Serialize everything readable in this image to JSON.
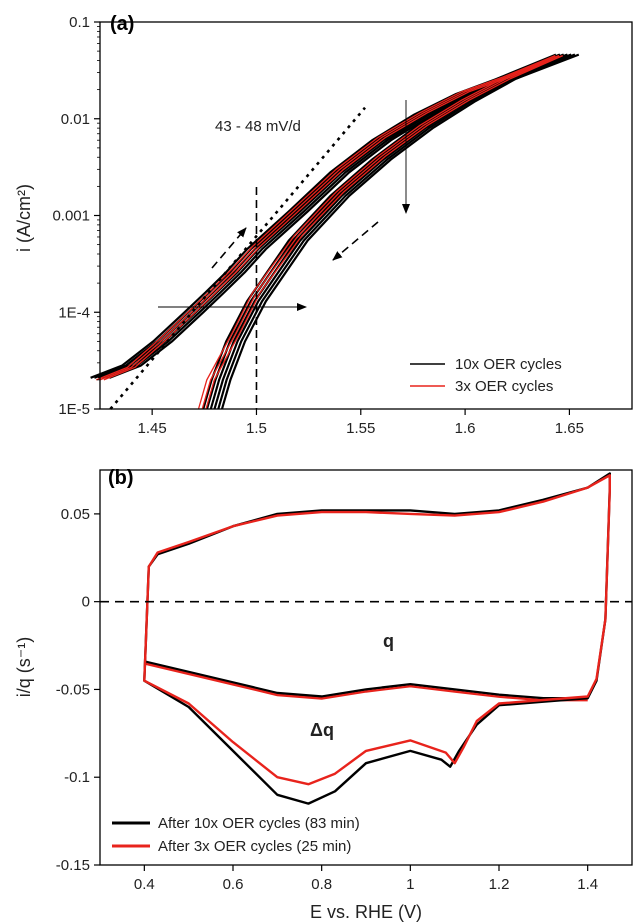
{
  "chart_data": [
    {
      "type": "line",
      "panel_label": "(a)",
      "ylabel": "i (A/cm²)",
      "xlabel": "",
      "xlim": [
        1.425,
        1.68
      ],
      "ylim": [
        1e-05,
        0.1
      ],
      "yscale": "log",
      "xticks": [
        1.45,
        1.5,
        1.55,
        1.6,
        1.65
      ],
      "xtick_labels": [
        "1.45",
        "1.5",
        "1.55",
        "1.6",
        "1.65"
      ],
      "yticks": [
        1e-05,
        0.0001,
        0.001,
        0.01,
        0.1
      ],
      "ytick_labels": [
        "1E-5",
        "1E-4",
        "0.001",
        "0.01",
        "0.1"
      ],
      "annotation": "43 - 48 mV/d",
      "legend_position": "bottom-right",
      "colors": {
        "series_10x": "#000000",
        "series_3x": "#e8231c"
      },
      "series": [
        {
          "name": "10x OER cycles",
          "color": "#000000",
          "anodic": [
            [
              1.425,
              2.1e-05
            ],
            [
              1.44,
              2.8e-05
            ],
            [
              1.455,
              5e-05
            ],
            [
              1.47,
              0.0001
            ],
            [
              1.48,
              0.00016
            ],
            [
              1.49,
              0.00026
            ],
            [
              1.5,
              0.00045
            ],
            [
              1.52,
              0.0011
            ],
            [
              1.54,
              0.0028
            ],
            [
              1.56,
              0.006
            ],
            [
              1.58,
              0.011
            ],
            [
              1.6,
              0.018
            ],
            [
              1.62,
              0.026
            ],
            [
              1.648,
              0.046
            ]
          ],
          "cathodic": [
            [
              1.65,
              0.046
            ],
            [
              1.62,
              0.026
            ],
            [
              1.6,
              0.015
            ],
            [
              1.58,
              0.008
            ],
            [
              1.56,
              0.0038
            ],
            [
              1.54,
              0.0016
            ],
            [
              1.52,
              0.00055
            ],
            [
              1.5,
              0.00013
            ],
            [
              1.49,
              5e-05
            ],
            [
              1.483,
              2e-05
            ],
            [
              1.479,
              1e-05
            ]
          ]
        },
        {
          "name": "3x OER cycles",
          "color": "#e8231c",
          "anodic": [
            [
              1.425,
              2e-05
            ],
            [
              1.44,
              2.7e-05
            ],
            [
              1.455,
              5.2e-05
            ],
            [
              1.47,
              0.000105
            ],
            [
              1.48,
              0.00017
            ],
            [
              1.49,
              0.00028
            ],
            [
              1.5,
              0.00048
            ],
            [
              1.52,
              0.0012
            ],
            [
              1.54,
              0.003
            ],
            [
              1.56,
              0.0064
            ],
            [
              1.58,
              0.0115
            ],
            [
              1.6,
              0.019
            ],
            [
              1.62,
              0.027
            ],
            [
              1.645,
              0.045
            ]
          ],
          "cathodic": [
            [
              1.645,
              0.045
            ],
            [
              1.62,
              0.026
            ],
            [
              1.6,
              0.0155
            ],
            [
              1.58,
              0.0085
            ],
            [
              1.56,
              0.0041
            ],
            [
              1.54,
              0.00175
            ],
            [
              1.52,
              0.00062
            ],
            [
              1.5,
              0.00016
            ],
            [
              1.49,
              6e-05
            ],
            [
              1.478,
              2e-05
            ],
            [
              1.474,
              1e-05
            ]
          ]
        }
      ],
      "reference_lines": [
        {
          "kind": "tafel",
          "points": [
            [
              1.43,
              1e-05
            ],
            [
              1.552,
              0.013
            ]
          ]
        },
        {
          "kind": "vertical",
          "x": 1.5
        }
      ]
    },
    {
      "type": "line",
      "panel_label": "(b)",
      "ylabel": "i/q (s⁻¹)",
      "xlabel": "E vs. RHE (V)",
      "xlim": [
        0.3,
        1.5
      ],
      "ylim": [
        -0.15,
        0.075
      ],
      "xticks": [
        0.4,
        0.6,
        0.8,
        1.0,
        1.2,
        1.4
      ],
      "xtick_labels": [
        "0.4",
        "0.6",
        "0.8",
        "1",
        "1.2",
        "1.4"
      ],
      "yticks": [
        -0.15,
        -0.1,
        -0.05,
        0,
        0.05
      ],
      "ytick_labels": [
        "-0.15",
        "-0.1",
        "-0.05",
        "0",
        "0.05"
      ],
      "annotations": [
        "q",
        "Δq"
      ],
      "legend_position": "bottom-left",
      "series": [
        {
          "name": "After 10x OER cycles (83 min)",
          "color": "#000000",
          "loop": [
            [
              0.4,
              -0.045
            ],
            [
              0.41,
              0.02
            ],
            [
              0.43,
              0.027
            ],
            [
              0.5,
              0.033
            ],
            [
              0.6,
              0.043
            ],
            [
              0.7,
              0.05
            ],
            [
              0.8,
              0.052
            ],
            [
              0.9,
              0.052
            ],
            [
              1.0,
              0.052
            ],
            [
              1.1,
              0.05
            ],
            [
              1.2,
              0.052
            ],
            [
              1.3,
              0.058
            ],
            [
              1.4,
              0.065
            ],
            [
              1.45,
              0.073
            ],
            [
              1.45,
              0.065
            ],
            [
              1.44,
              -0.01
            ],
            [
              1.42,
              -0.045
            ],
            [
              1.4,
              -0.055
            ],
            [
              1.3,
              -0.057
            ],
            [
              1.2,
              -0.059
            ],
            [
              1.15,
              -0.07
            ],
            [
              1.11,
              -0.085
            ],
            [
              1.09,
              -0.094
            ],
            [
              1.07,
              -0.09
            ],
            [
              1.0,
              -0.085
            ],
            [
              0.9,
              -0.092
            ],
            [
              0.83,
              -0.108
            ],
            [
              0.77,
              -0.115
            ],
            [
              0.7,
              -0.11
            ],
            [
              0.6,
              -0.085
            ],
            [
              0.5,
              -0.06
            ],
            [
              0.4,
              -0.045
            ]
          ]
        },
        {
          "name": "After 3x OER cycles (25 min)",
          "color": "#e8231c",
          "loop": [
            [
              0.4,
              -0.045
            ],
            [
              0.41,
              0.02
            ],
            [
              0.43,
              0.028
            ],
            [
              0.5,
              0.034
            ],
            [
              0.6,
              0.043
            ],
            [
              0.7,
              0.049
            ],
            [
              0.8,
              0.051
            ],
            [
              0.9,
              0.051
            ],
            [
              1.0,
              0.05
            ],
            [
              1.1,
              0.049
            ],
            [
              1.2,
              0.051
            ],
            [
              1.3,
              0.057
            ],
            [
              1.4,
              0.065
            ],
            [
              1.45,
              0.072
            ],
            [
              1.45,
              0.064
            ],
            [
              1.44,
              -0.01
            ],
            [
              1.42,
              -0.044
            ],
            [
              1.4,
              -0.054
            ],
            [
              1.3,
              -0.056
            ],
            [
              1.2,
              -0.058
            ],
            [
              1.15,
              -0.068
            ],
            [
              1.12,
              -0.083
            ],
            [
              1.1,
              -0.092
            ],
            [
              1.08,
              -0.086
            ],
            [
              1.0,
              -0.079
            ],
            [
              0.9,
              -0.085
            ],
            [
              0.83,
              -0.098
            ],
            [
              0.77,
              -0.104
            ],
            [
              0.7,
              -0.1
            ],
            [
              0.6,
              -0.08
            ],
            [
              0.5,
              -0.058
            ],
            [
              0.4,
              -0.045
            ]
          ]
        }
      ],
      "upper_cathodic": [
        [
          1.4,
          -0.055
        ],
        [
          1.3,
          -0.055
        ],
        [
          1.2,
          -0.053
        ],
        [
          1.1,
          -0.05
        ],
        [
          1.0,
          -0.047
        ],
        [
          0.9,
          -0.05
        ],
        [
          0.8,
          -0.054
        ],
        [
          0.7,
          -0.052
        ],
        [
          0.6,
          -0.046
        ],
        [
          0.5,
          -0.04
        ],
        [
          0.4,
          -0.034
        ]
      ],
      "reference_lines": [
        {
          "kind": "horizontal",
          "y": 0
        }
      ]
    }
  ]
}
